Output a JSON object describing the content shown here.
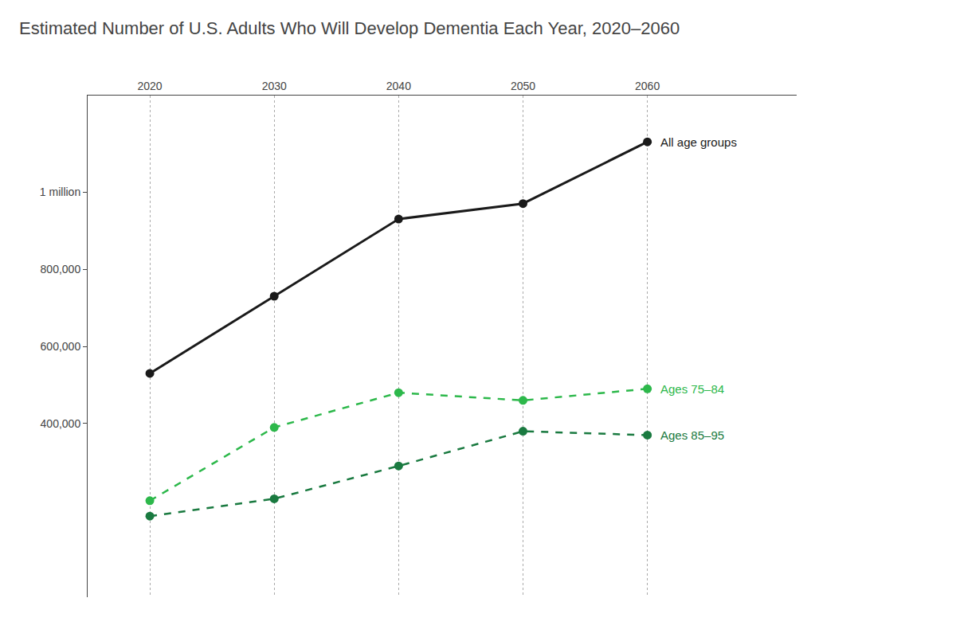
{
  "chart_data": {
    "type": "line",
    "title": "Estimated Number of U.S. Adults Who Will Develop Dementia Each Year, 2020–2060",
    "x": [
      2020,
      2030,
      2040,
      2050,
      2060
    ],
    "series": [
      {
        "name": "All age groups",
        "color": "#1a1a1a",
        "line_style": "solid",
        "marker": "circle",
        "values": [
          530000,
          730000,
          930000,
          970000,
          1130000
        ]
      },
      {
        "name": "Ages 75–84",
        "color": "#2db84b",
        "line_style": "dashed",
        "marker": "circle",
        "values": [
          200000,
          390000,
          480000,
          460000,
          490000
        ]
      },
      {
        "name": "Ages 85–95",
        "color": "#1a7a40",
        "line_style": "dashed",
        "marker": "circle",
        "values": [
          160000,
          205000,
          290000,
          380000,
          370000
        ]
      }
    ],
    "xlim": [
      2015,
      2072
    ],
    "xticks": [
      2020,
      2030,
      2040,
      2050,
      2060
    ],
    "ylim": [
      -50000,
      1250000
    ],
    "yticks": [
      {
        "value": 400000,
        "label": "400,000"
      },
      {
        "value": 600000,
        "label": "600,000"
      },
      {
        "value": 800000,
        "label": "800,000"
      },
      {
        "value": 1000000,
        "label": "1 million"
      }
    ],
    "grid": "x"
  }
}
